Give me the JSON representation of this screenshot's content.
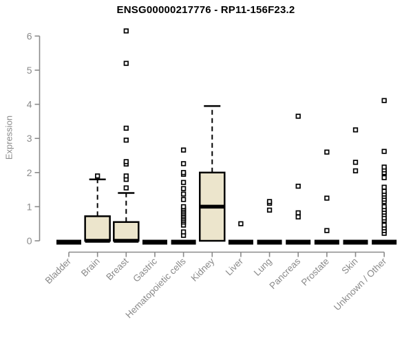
{
  "chart_data": {
    "type": "boxplot",
    "title": "ENSG00000217776 - RP11-156F23.2",
    "ylabel": "Expression",
    "xlabel": "",
    "ylim": [
      0,
      6.2
    ],
    "yticks": [
      0,
      1,
      2,
      3,
      4,
      5,
      6
    ],
    "grid": false,
    "legend": "none",
    "categories": [
      "Bladder",
      "Brain",
      "Breast",
      "Gastric",
      "Hematopoietic cells",
      "Kidney",
      "Liver",
      "Lung",
      "Pancreas",
      "Prostate",
      "Skin",
      "Unknown / Other"
    ],
    "boxes": [
      {
        "category": "Bladder",
        "q1": 0,
        "median": 0,
        "q3": 0,
        "whisker_low": 0,
        "whisker_high": 0,
        "outliers": []
      },
      {
        "category": "Brain",
        "q1": 0,
        "median": 0,
        "q3": 0.72,
        "whisker_low": 0,
        "whisker_high": 1.8,
        "outliers": [
          1.9
        ]
      },
      {
        "category": "Breast",
        "q1": 0,
        "median": 0,
        "q3": 0.55,
        "whisker_low": 0,
        "whisker_high": 1.4,
        "outliers": [
          1.55,
          1.8,
          1.9,
          2.25,
          2.32,
          2.95,
          3.3,
          5.2,
          6.15
        ]
      },
      {
        "category": "Gastric",
        "q1": 0,
        "median": 0,
        "q3": 0,
        "whisker_low": 0,
        "whisker_high": 0,
        "outliers": []
      },
      {
        "category": "Hematopoietic cells",
        "q1": 0,
        "median": 0,
        "q3": 0,
        "whisker_low": 0,
        "whisker_high": 0,
        "outliers": [
          0.16,
          0.26,
          0.46,
          0.55,
          0.6,
          0.65,
          0.7,
          0.75,
          0.8,
          0.85,
          0.9,
          0.95,
          1.0,
          1.21,
          1.37,
          1.53,
          1.71,
          1.95,
          2.0,
          2.26,
          2.66
        ]
      },
      {
        "category": "Kidney",
        "q1": 0,
        "median": 1.0,
        "q3": 2.0,
        "whisker_low": 0,
        "whisker_high": 3.95,
        "outliers": []
      },
      {
        "category": "Liver",
        "q1": 0,
        "median": 0,
        "q3": 0,
        "whisker_low": 0,
        "whisker_high": 0,
        "outliers": [
          0.5
        ]
      },
      {
        "category": "Lung",
        "q1": 0,
        "median": 0,
        "q3": 0,
        "whisker_low": 0,
        "whisker_high": 0,
        "outliers": [
          0.9,
          1.1,
          1.15
        ]
      },
      {
        "category": "Pancreas",
        "q1": 0,
        "median": 0,
        "q3": 0,
        "whisker_low": 0,
        "whisker_high": 0,
        "outliers": [
          0.7,
          0.82,
          1.6,
          3.65
        ]
      },
      {
        "category": "Prostate",
        "q1": 0,
        "median": 0,
        "q3": 0,
        "whisker_low": 0,
        "whisker_high": 0,
        "outliers": [
          0.3,
          1.25,
          2.6
        ]
      },
      {
        "category": "Skin",
        "q1": 0,
        "median": 0,
        "q3": 0,
        "whisker_low": 0,
        "whisker_high": 0,
        "outliers": [
          2.05,
          2.3,
          3.25
        ]
      },
      {
        "category": "Unknown / Other",
        "q1": 0,
        "median": 0,
        "q3": 0,
        "whisker_low": 0,
        "whisker_high": 0,
        "outliers": [
          0.22,
          0.3,
          0.38,
          0.46,
          0.6,
          0.67,
          0.77,
          0.84,
          0.92,
          1.0,
          1.15,
          1.22,
          1.3,
          1.37,
          1.45,
          1.57,
          1.85,
          1.98,
          2.0,
          2.08,
          2.16,
          2.62,
          4.11
        ]
      }
    ],
    "style": {
      "box_fill": "#ece5cc",
      "box_stroke": "#000000",
      "median_color": "#000000",
      "whisker_color": "#000000",
      "outlier_fill": "#ffffff",
      "outlier_stroke": "#000000",
      "axis_color": "#8a8a8a",
      "tick_label_color": "#8a8a8a",
      "title_color": "#000000",
      "background": "#ffffff"
    }
  }
}
